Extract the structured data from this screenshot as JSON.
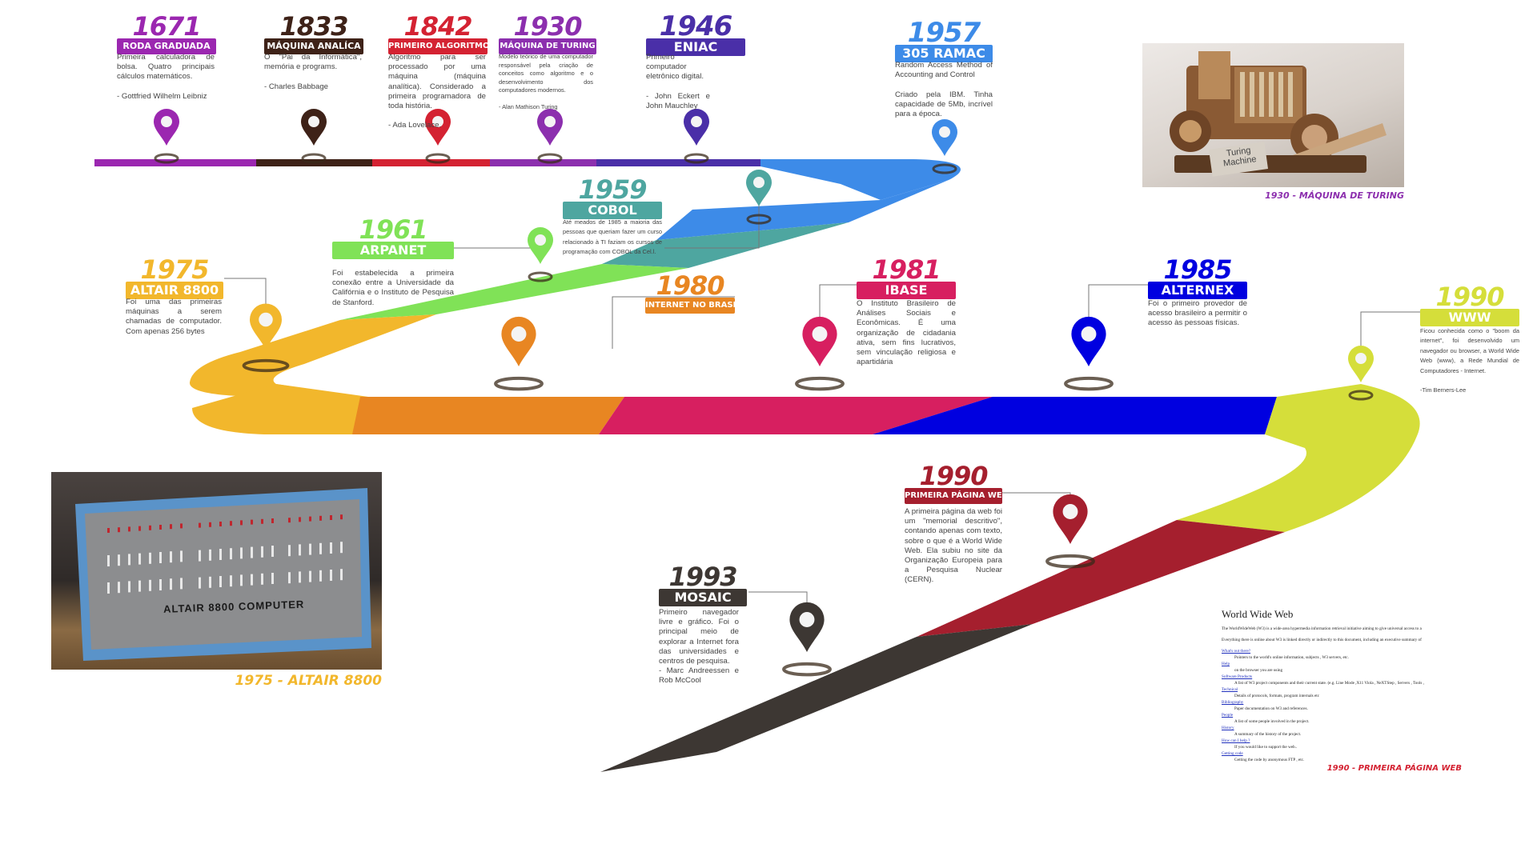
{
  "colors": {
    "roda": "#9b27b0",
    "analitica": "#3e2218",
    "algoritmo": "#d42232",
    "turing": "#8c2fae",
    "eniac": "#4a2fa8",
    "ramac": "#3d8be8",
    "cobol": "#4ea6a0",
    "arpanet": "#80e257",
    "altair": "#f2b72c",
    "brasil": "#e88622",
    "ibase": "#d71f60",
    "alternex": "#0000e0",
    "www": "#d5de3a",
    "pagina": "#a51f2e",
    "mosaic": "#3d3733"
  },
  "events": [
    {
      "id": "roda",
      "year": "1671",
      "title": "RODA GRADUADA",
      "desc": "Primeira calculadora de bolsa. Quatro principais cálculos matemáticos.\n\n- Gottfried Wilhelm Leibniz"
    },
    {
      "id": "analitica",
      "year": "1833",
      "title": "MÁQUINA ANALÍCA",
      "desc": "O \"Pai da Informática\", memória e programs.\n\n- Charles Babbage"
    },
    {
      "id": "algoritmo",
      "year": "1842",
      "title": "PRIMEIRO ALGORITMO",
      "desc": "Algoritmo para ser processado por uma máquina (máquina analítica). Considerado a primeira programadora de toda história.\n\n- Ada Lovelace."
    },
    {
      "id": "turing",
      "year": "1930",
      "title": "MÁQUINA DE TURING",
      "desc": "Modelo teórico de uma computador responsável pela criação de conceitos como algoritmo e o desenvolvimento dos computadores modernos.\n\n- Alan Mathison Turing"
    },
    {
      "id": "eniac",
      "year": "1946",
      "title": "ENIAC",
      "desc": "Primeiro computador eletrônico digital.\n\n- John Eckert e John Mauchley"
    },
    {
      "id": "ramac",
      "year": "1957",
      "title": "305 RAMAC",
      "desc": "Random Access Method of Accounting and Control\n\nCriado pela IBM. Tinha capacidade de 5Mb, incrível para a época."
    },
    {
      "id": "cobol",
      "year": "1959",
      "title": "COBOL",
      "desc": "Até meados de 1985 a maioria das pessoas que queriam fazer um curso relacionado à TI faziam os cursos de programação com COBOL da Cel.l."
    },
    {
      "id": "arpanet",
      "year": "1961",
      "title": "ARPANET",
      "desc": "Foi estabelecida a primeira conexão entre a Universidade da Califórnia e o Instituto de Pesquisa de Stanford."
    },
    {
      "id": "altair",
      "year": "1975",
      "title": "ALTAIR 8800",
      "desc": "Foi uma das primeiras máquinas a serem chamadas de computador. Com apenas 256 bytes"
    },
    {
      "id": "brasil",
      "year": "1980",
      "title": "INTERNET NO BRASIL",
      "desc": ""
    },
    {
      "id": "ibase",
      "year": "1981",
      "title": "IBASE",
      "desc": "O Instituto Brasileiro de Análises Sociais e Econômicas. É uma organização de cidadania ativa, sem fins lucrativos, sem vinculação religiosa e apartidária"
    },
    {
      "id": "alternex",
      "year": "1985",
      "title": "ALTERNEX",
      "desc": "Foi o primeiro provedor de acesso brasileiro a permitir o acesso às pessoas físicas."
    },
    {
      "id": "www",
      "year": "1990",
      "title": "WWW",
      "desc": "Ficou conhecida como o \"boom da internet\", foi desenvolvido um navegador ou browser, a World Wide Web (www), a Rede Mundial de Computadores - Internet.\n\n-Tim Berners-Lee"
    },
    {
      "id": "pagina",
      "year": "1990",
      "title": "PRIMEIRA PÁGINA WEB",
      "desc": "A primeira página da web foi um \"memorial descritivo\", contando apenas com texto, sobre o que é a World Wide Web. Ela subiu no site da Organização Europeia para a Pesquisa Nuclear (CERN)."
    },
    {
      "id": "mosaic",
      "year": "1993",
      "title": "MOSAIC",
      "desc": "Primeiro navegador livre e gráfico. Foi o principal meio de explorar a Internet fora das universidades e centros de pesquisa.\n- Marc Andreessen e Rob McCool"
    }
  ],
  "photos": {
    "turing_label": "Turing Machine",
    "turing_caption": "1930 - MÁQUINA DE TURING",
    "altair_label": "ALTAIR 8800 COMPUTER",
    "altair_caption": "1975 - ALTAIR 8800",
    "web_caption": "1990 - PRIMEIRA PÁGINA WEB"
  },
  "webpage": {
    "heading": "World Wide Web",
    "lines": [
      {
        "text": "The WorldWideWeb (W3) is a wide-area hypermedia information retrieval initiative aiming to give universal access to a",
        "style": "plain"
      },
      {
        "text": "Everything there is online about W3 is linked directly or indirectly to this document, including an executive summary of",
        "style": "plain"
      },
      {
        "text": "What's out there?",
        "style": "link"
      },
      {
        "text": "Pointers to the world's online information, subjects , W3 servers, etc.",
        "style": "ind"
      },
      {
        "text": "Help",
        "style": "link"
      },
      {
        "text": "on the browser you are using",
        "style": "ind"
      },
      {
        "text": "Software Products",
        "style": "link"
      },
      {
        "text": "A list of W3 project components and their current state. (e.g. Line Mode ,X11 Viola , NeXTStep , Servers , Tools ,",
        "style": "ind"
      },
      {
        "text": "Technical",
        "style": "link"
      },
      {
        "text": "Details of protocols, formats, program internals etc",
        "style": "ind"
      },
      {
        "text": "Bibliography",
        "style": "link"
      },
      {
        "text": "Paper documentation on W3 and references.",
        "style": "ind"
      },
      {
        "text": "People",
        "style": "link"
      },
      {
        "text": "A list of some people involved in the project.",
        "style": "ind"
      },
      {
        "text": "History",
        "style": "link"
      },
      {
        "text": "A summary of the history of the project.",
        "style": "ind"
      },
      {
        "text": "How can I help ?",
        "style": "link"
      },
      {
        "text": "If you would like to support the web..",
        "style": "ind"
      },
      {
        "text": "Getting code",
        "style": "link"
      },
      {
        "text": "Getting the code by anonymous FTP , etc.",
        "style": "ind"
      }
    ]
  }
}
